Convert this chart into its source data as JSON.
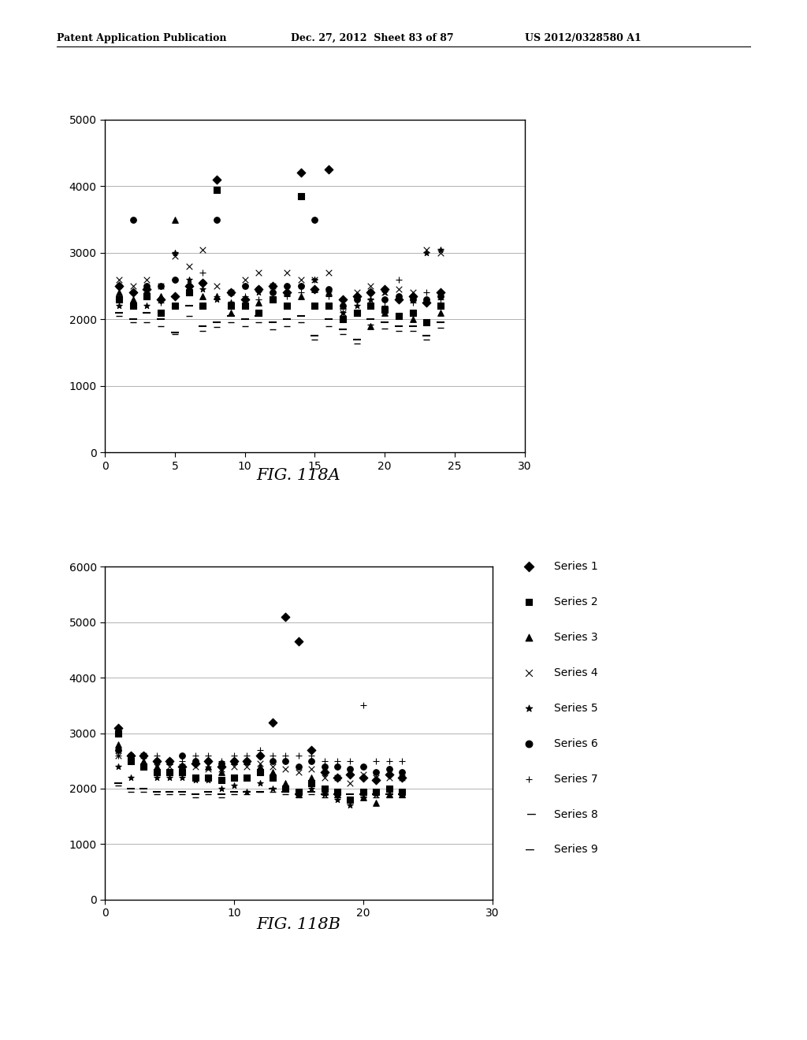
{
  "header_left": "Patent Application Publication",
  "header_mid": "Dec. 27, 2012  Sheet 83 of 87",
  "header_right": "US 2012/0328580 A1",
  "fig_a_title": "FIG. 118A",
  "fig_b_title": "FIG. 118B",
  "background_color": "#ffffff",
  "series_labels": [
    "Series 1",
    "Series 2",
    "Series 3",
    "Series 4",
    "Series 5",
    "Series 6",
    "Series 7",
    "Series 8",
    "Series 9"
  ],
  "fig_a": {
    "xlim": [
      0,
      30
    ],
    "ylim": [
      0,
      5000
    ],
    "xticks": [
      0,
      5,
      10,
      15,
      20,
      25,
      30
    ],
    "yticks": [
      0,
      1000,
      2000,
      3000,
      4000,
      5000
    ],
    "series": [
      {
        "x": [
          1,
          2,
          3,
          4,
          5,
          6,
          7,
          8,
          9,
          10,
          11,
          12,
          13,
          14,
          15,
          16,
          17,
          18,
          19,
          20,
          21,
          22,
          23,
          24
        ],
        "y": [
          2500,
          2400,
          2450,
          2300,
          2350,
          2500,
          2550,
          4100,
          2400,
          2300,
          2450,
          2500,
          2400,
          4200,
          2450,
          4250,
          2300,
          2350,
          2400,
          2450,
          2300,
          2350,
          2250,
          2400
        ]
      },
      {
        "x": [
          1,
          2,
          3,
          4,
          5,
          6,
          7,
          8,
          9,
          10,
          11,
          12,
          13,
          14,
          15,
          16,
          17,
          18,
          19,
          20,
          21,
          22,
          23,
          24
        ],
        "y": [
          2300,
          2200,
          2350,
          2100,
          2200,
          2400,
          2200,
          3950,
          2200,
          2200,
          2100,
          2300,
          2200,
          3850,
          2200,
          2200,
          2000,
          2100,
          2200,
          2150,
          2050,
          2100,
          1950,
          2200
        ]
      },
      {
        "x": [
          1,
          2,
          3,
          4,
          5,
          6,
          7,
          8,
          9,
          10,
          11,
          12,
          13,
          14,
          15,
          16,
          17,
          18,
          19,
          20,
          21,
          22,
          23,
          24
        ],
        "y": [
          2400,
          2300,
          2400,
          2350,
          3500,
          2400,
          2350,
          2350,
          2100,
          2200,
          2250,
          2300,
          2400,
          2350,
          2450,
          2400,
          2200,
          2100,
          1900,
          2100,
          2050,
          2000,
          1950,
          2100
        ]
      },
      {
        "x": [
          1,
          2,
          3,
          4,
          5,
          6,
          7,
          8,
          9,
          10,
          11,
          12,
          13,
          14,
          15,
          16,
          17,
          18,
          19,
          20,
          21,
          22,
          23,
          24
        ],
        "y": [
          2600,
          2500,
          2600,
          2500,
          2950,
          2800,
          3050,
          2500,
          2400,
          2600,
          2700,
          2500,
          2700,
          2600,
          2600,
          2700,
          2100,
          2400,
          2500,
          2400,
          2450,
          2400,
          3050,
          3000
        ]
      },
      {
        "x": [
          1,
          2,
          3,
          4,
          5,
          6,
          7,
          8,
          9,
          10,
          11,
          12,
          13,
          14,
          15,
          16,
          17,
          18,
          19,
          20,
          21,
          22,
          23,
          24
        ],
        "y": [
          2200,
          2400,
          2200,
          2300,
          3000,
          2600,
          2450,
          2300,
          2250,
          2500,
          2400,
          2400,
          2400,
          2500,
          2600,
          2400,
          2100,
          2200,
          2300,
          2400,
          2300,
          2350,
          3000,
          3050
        ]
      },
      {
        "x": [
          1,
          2,
          3,
          4,
          5,
          6,
          7,
          8,
          9,
          10,
          11,
          12,
          13,
          14,
          15,
          16,
          17,
          18,
          19,
          20,
          21,
          22,
          23,
          24
        ],
        "y": [
          2500,
          3500,
          2500,
          2500,
          2600,
          2500,
          2550,
          3500,
          2400,
          2500,
          2450,
          2400,
          2500,
          2500,
          3500,
          2450,
          2200,
          2300,
          2400,
          2300,
          2350,
          2300,
          2300,
          2350
        ]
      },
      {
        "x": [
          1,
          2,
          3,
          4,
          5,
          6,
          7,
          8,
          9,
          10,
          11,
          12,
          13,
          14,
          15,
          16,
          17,
          18,
          19,
          20,
          21,
          22,
          23,
          24
        ],
        "y": [
          2350,
          2200,
          2400,
          2250,
          3000,
          2400,
          2700,
          2350,
          2250,
          2350,
          2300,
          2400,
          2350,
          2400,
          2600,
          2350,
          2050,
          2100,
          2300,
          2200,
          2600,
          2250,
          2400,
          2300
        ]
      },
      {
        "x": [
          1,
          2,
          3,
          4,
          5,
          6,
          7,
          8,
          9,
          10,
          11,
          12,
          13,
          14,
          15,
          16,
          17,
          18,
          19,
          20,
          21,
          22,
          23,
          24
        ],
        "y": [
          2100,
          2000,
          2100,
          2000,
          1800,
          2200,
          1900,
          1950,
          2050,
          2000,
          2050,
          1950,
          2000,
          2050,
          1750,
          2000,
          1850,
          1700,
          2000,
          1950,
          1900,
          1900,
          1750,
          1950
        ]
      },
      {
        "x": [
          1,
          2,
          3,
          4,
          5,
          6,
          7,
          8,
          9,
          10,
          11,
          12,
          13,
          14,
          15,
          16,
          17,
          18,
          19,
          20,
          21,
          22,
          23,
          24
        ],
        "y": [
          2050,
          1950,
          1950,
          1900,
          1780,
          2050,
          1820,
          1880,
          1950,
          1900,
          1950,
          1850,
          1900,
          1950,
          1700,
          1900,
          1780,
          1640,
          1920,
          1860,
          1820,
          1820,
          1700,
          1870
        ]
      }
    ]
  },
  "fig_b": {
    "xlim": [
      0,
      30
    ],
    "ylim": [
      0,
      6000
    ],
    "xticks": [
      0,
      10,
      20,
      30
    ],
    "yticks": [
      0,
      1000,
      2000,
      3000,
      4000,
      5000,
      6000
    ],
    "series": [
      {
        "x": [
          1,
          2,
          3,
          4,
          5,
          6,
          7,
          8,
          9,
          10,
          11,
          12,
          13,
          14,
          15,
          16,
          17,
          18,
          19,
          20,
          21,
          22,
          23
        ],
        "y": [
          3100,
          2600,
          2600,
          2500,
          2500,
          2400,
          2450,
          2500,
          2400,
          2500,
          2500,
          2600,
          3200,
          5100,
          4650,
          2700,
          2300,
          2200,
          2250,
          2200,
          2150,
          2250,
          2200
        ]
      },
      {
        "x": [
          1,
          2,
          3,
          4,
          5,
          6,
          7,
          8,
          9,
          10,
          11,
          12,
          13,
          14,
          15,
          16,
          17,
          18,
          19,
          20,
          21,
          22,
          23
        ],
        "y": [
          3000,
          2500,
          2400,
          2300,
          2300,
          2300,
          2200,
          2200,
          2150,
          2200,
          2200,
          2300,
          2200,
          2000,
          1950,
          2100,
          2000,
          1950,
          1800,
          1950,
          1950,
          2000,
          1950
        ]
      },
      {
        "x": [
          1,
          2,
          3,
          4,
          5,
          6,
          7,
          8,
          9,
          10,
          11,
          12,
          13,
          14,
          15,
          16,
          17,
          18,
          19,
          20,
          21,
          22,
          23
        ],
        "y": [
          2800,
          2600,
          2500,
          2400,
          2500,
          2400,
          2500,
          2400,
          2300,
          2500,
          2500,
          2400,
          2300,
          2100,
          1900,
          2200,
          1950,
          1900,
          1800,
          1850,
          1750,
          1900,
          1900
        ]
      },
      {
        "x": [
          1,
          2,
          3,
          4,
          5,
          6,
          7,
          8,
          9,
          10,
          11,
          12,
          13,
          14,
          15,
          16,
          17,
          18,
          19,
          20,
          21,
          22,
          23
        ],
        "y": [
          2600,
          2500,
          2600,
          2400,
          2400,
          2400,
          2400,
          2350,
          2350,
          2400,
          2400,
          2450,
          2400,
          2350,
          2300,
          2350,
          2200,
          2200,
          2100,
          2250,
          2200,
          2200,
          2200
        ]
      },
      {
        "x": [
          1,
          2,
          3,
          4,
          5,
          6,
          7,
          8,
          9,
          10,
          11,
          12,
          13,
          14,
          15,
          16,
          17,
          18,
          19,
          20,
          21,
          22,
          23
        ],
        "y": [
          2400,
          2200,
          2400,
          2200,
          2200,
          2200,
          2150,
          2150,
          2000,
          2050,
          1950,
          2100,
          2000,
          2000,
          1900,
          2000,
          1900,
          1800,
          1700,
          1850,
          1900,
          1900,
          1900
        ]
      },
      {
        "x": [
          1,
          2,
          3,
          4,
          5,
          6,
          7,
          8,
          9,
          10,
          11,
          12,
          13,
          14,
          15,
          16,
          17,
          18,
          19,
          20,
          21,
          22,
          23
        ],
        "y": [
          2700,
          2600,
          2600,
          2500,
          2500,
          2600,
          2500,
          2500,
          2450,
          2500,
          2500,
          2600,
          2500,
          2500,
          2400,
          2500,
          2400,
          2400,
          2350,
          2400,
          2300,
          2350,
          2300
        ]
      },
      {
        "x": [
          1,
          2,
          3,
          4,
          5,
          6,
          7,
          8,
          9,
          10,
          11,
          12,
          13,
          14,
          15,
          16,
          17,
          18,
          19,
          20,
          21,
          22,
          23
        ],
        "y": [
          2600,
          2600,
          2600,
          2600,
          2500,
          2500,
          2600,
          2600,
          2500,
          2600,
          2600,
          2700,
          2600,
          2600,
          2600,
          2600,
          2500,
          2500,
          2500,
          3500,
          2500,
          2500,
          2500
        ]
      },
      {
        "x": [
          1,
          2,
          3,
          4,
          5,
          6,
          7,
          8,
          9,
          10,
          11,
          12,
          13,
          14,
          15,
          16,
          17,
          18,
          19,
          20,
          21,
          22,
          23
        ],
        "y": [
          2100,
          2000,
          2000,
          1950,
          1950,
          1950,
          1900,
          1950,
          1900,
          1950,
          1950,
          1950,
          2000,
          1950,
          1900,
          1950,
          1900,
          1900,
          1900,
          1900,
          1900,
          1900,
          1900
        ]
      },
      {
        "x": [
          1,
          2,
          3,
          4,
          5,
          6,
          7,
          8,
          9,
          10,
          11,
          12,
          13,
          14,
          15,
          16,
          17,
          18,
          19,
          20,
          21,
          22,
          23
        ],
        "y": [
          2050,
          1950,
          1950,
          1900,
          1900,
          1900,
          1850,
          1900,
          1850,
          1900,
          1900,
          1950,
          1950,
          1900,
          1850,
          1900,
          1850,
          1850,
          1850,
          1850,
          1850,
          1850,
          1850
        ]
      }
    ]
  }
}
